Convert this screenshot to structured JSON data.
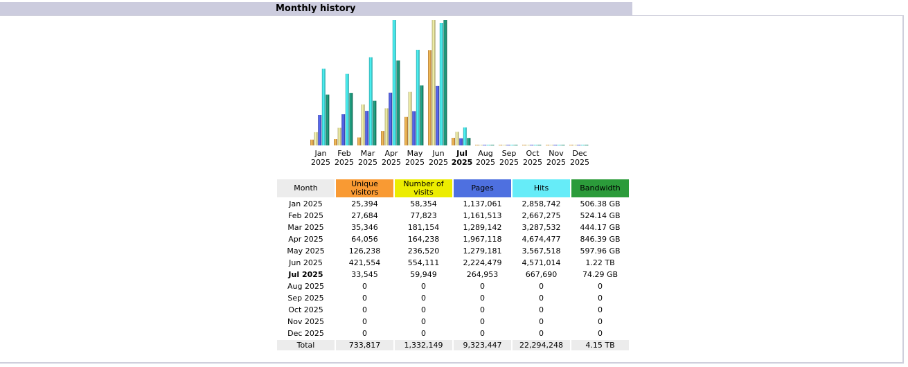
{
  "section_title": "Monthly history",
  "colors": {
    "unique_visitors": "#f99a33",
    "visits": "#ecec00",
    "pages": "#4e70e0",
    "hits": "#66ecf8",
    "bandwidth": "#2b9b3a",
    "header_gray": "#ececec",
    "title_bar": "#ccccde"
  },
  "table": {
    "headers": {
      "month": "Month",
      "unique_visitors": "Unique visitors",
      "visits": "Number of visits",
      "pages": "Pages",
      "hits": "Hits",
      "bandwidth": "Bandwidth"
    },
    "rows": [
      {
        "month": "Jan 2025",
        "uv": "25,394",
        "visits": "58,354",
        "pages": "1,137,061",
        "hits": "2,858,742",
        "bw": "506.38 GB",
        "current": false
      },
      {
        "month": "Feb 2025",
        "uv": "27,684",
        "visits": "77,823",
        "pages": "1,161,513",
        "hits": "2,667,275",
        "bw": "524.14 GB",
        "current": false
      },
      {
        "month": "Mar 2025",
        "uv": "35,346",
        "visits": "181,154",
        "pages": "1,289,142",
        "hits": "3,287,532",
        "bw": "444.17 GB",
        "current": false
      },
      {
        "month": "Apr 2025",
        "uv": "64,056",
        "visits": "164,238",
        "pages": "1,967,118",
        "hits": "4,674,477",
        "bw": "846.39 GB",
        "current": false
      },
      {
        "month": "May 2025",
        "uv": "126,238",
        "visits": "236,520",
        "pages": "1,279,181",
        "hits": "3,567,518",
        "bw": "597.96 GB",
        "current": false
      },
      {
        "month": "Jun 2025",
        "uv": "421,554",
        "visits": "554,111",
        "pages": "2,224,479",
        "hits": "4,571,014",
        "bw": "1.22 TB",
        "current": false
      },
      {
        "month": "Jul 2025",
        "uv": "33,545",
        "visits": "59,949",
        "pages": "264,953",
        "hits": "667,690",
        "bw": "74.29 GB",
        "current": true
      },
      {
        "month": "Aug 2025",
        "uv": "0",
        "visits": "0",
        "pages": "0",
        "hits": "0",
        "bw": "0",
        "current": false
      },
      {
        "month": "Sep 2025",
        "uv": "0",
        "visits": "0",
        "pages": "0",
        "hits": "0",
        "bw": "0",
        "current": false
      },
      {
        "month": "Oct 2025",
        "uv": "0",
        "visits": "0",
        "pages": "0",
        "hits": "0",
        "bw": "0",
        "current": false
      },
      {
        "month": "Nov 2025",
        "uv": "0",
        "visits": "0",
        "pages": "0",
        "hits": "0",
        "bw": "0",
        "current": false
      },
      {
        "month": "Dec 2025",
        "uv": "0",
        "visits": "0",
        "pages": "0",
        "hits": "0",
        "bw": "0",
        "current": false
      }
    ],
    "total": {
      "label": "Total",
      "uv": "733,817",
      "visits": "1,332,149",
      "pages": "9,323,447",
      "hits": "22,294,248",
      "bw": "4.15 TB"
    }
  },
  "chart_data": {
    "type": "bar",
    "title": "Monthly history",
    "categories": [
      "Jan",
      "Feb",
      "Mar",
      "Apr",
      "May",
      "Jun",
      "Jul",
      "Aug",
      "Sep",
      "Oct",
      "Nov",
      "Dec"
    ],
    "years": [
      "2025",
      "2025",
      "2025",
      "2025",
      "2025",
      "2025",
      "2025",
      "2025",
      "2025",
      "2025",
      "2025",
      "2025"
    ],
    "current_index": 6,
    "series": [
      {
        "name": "Unique visitors",
        "key": "uv",
        "values": [
          25394,
          27684,
          35346,
          64056,
          126238,
          421554,
          33545,
          0,
          0,
          0,
          0,
          0
        ]
      },
      {
        "name": "Number of visits",
        "key": "visits",
        "values": [
          58354,
          77823,
          181154,
          164238,
          236520,
          554111,
          59949,
          0,
          0,
          0,
          0,
          0
        ]
      },
      {
        "name": "Pages",
        "key": "pages",
        "values": [
          1137061,
          1161513,
          1289142,
          1967118,
          1279181,
          2224479,
          264953,
          0,
          0,
          0,
          0,
          0
        ]
      },
      {
        "name": "Hits",
        "key": "hits",
        "values": [
          2858742,
          2667275,
          3287532,
          4674477,
          3567518,
          4571014,
          667690,
          0,
          0,
          0,
          0,
          0
        ]
      },
      {
        "name": "Bandwidth (GB)",
        "key": "bw",
        "values": [
          506.38,
          524.14,
          444.17,
          846.39,
          597.96,
          1249.28,
          74.29,
          0,
          0,
          0,
          0,
          0
        ]
      }
    ],
    "scale_groups": [
      [
        "uv",
        "visits"
      ],
      [
        "pages",
        "hits"
      ],
      [
        "bw"
      ]
    ],
    "legend": "none"
  }
}
